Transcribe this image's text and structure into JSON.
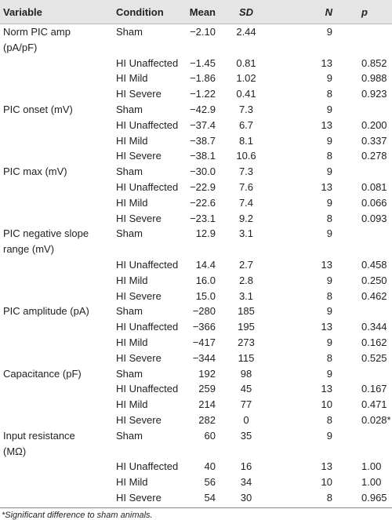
{
  "table": {
    "columns": [
      "Variable",
      "Condition",
      "Mean",
      "SD",
      "N",
      "p"
    ],
    "groups": [
      {
        "variable": [
          "Norm PIC amp",
          "(pA/pF)"
        ],
        "rows": [
          [
            "Sham",
            "−2.10",
            "2.44",
            "9"
          ],
          [
            "HI Unaffected",
            "−1.45",
            "0.81",
            "13",
            "0.852"
          ],
          [
            "HI Mild",
            "−1.86",
            "1.02",
            "9",
            "0.988"
          ],
          [
            "HI Severe",
            "−1.22",
            "0.41",
            "8",
            "0.923"
          ]
        ]
      },
      {
        "variable": [
          "PIC onset (mV)"
        ],
        "rows": [
          [
            "Sham",
            "−42.9",
            "7.3",
            "9"
          ],
          [
            "HI Unaffected",
            "−37.4",
            "6.7",
            "13",
            "0.200"
          ],
          [
            "HI Mild",
            "−38.7",
            "8.1",
            "9",
            "0.337"
          ],
          [
            "HI Severe",
            "−38.1",
            "10.6",
            "8",
            "0.278"
          ]
        ]
      },
      {
        "variable": [
          "PIC max (mV)"
        ],
        "rows": [
          [
            "Sham",
            "−30.0",
            "7.3",
            "9"
          ],
          [
            "HI Unaffected",
            "−22.9",
            "7.6",
            "13",
            "0.081"
          ],
          [
            "HI Mild",
            "−22.6",
            "7.4",
            "9",
            "0.066"
          ],
          [
            "HI Severe",
            "−23.1",
            "9.2",
            "8",
            "0.093"
          ]
        ]
      },
      {
        "variable": [
          "PIC negative slope",
          "range (mV)"
        ],
        "rows": [
          [
            "Sham",
            "12.9",
            "3.1",
            "9"
          ],
          [
            "HI Unaffected",
            "14.4",
            "2.7",
            "13",
            "0.458"
          ],
          [
            "HI Mild",
            "16.0",
            "2.8",
            "9",
            "0.250"
          ],
          [
            "HI Severe",
            "15.0",
            "3.1",
            "8",
            "0.462"
          ]
        ]
      },
      {
        "variable": [
          "PIC amplitude (pA)"
        ],
        "rows": [
          [
            "Sham",
            "−280",
            "185",
            "9"
          ],
          [
            "HI Unaffected",
            "−366",
            "195",
            "13",
            "0.344"
          ],
          [
            "HI Mild",
            "−417",
            "273",
            "9",
            "0.162"
          ],
          [
            "HI Severe",
            "−344",
            "115",
            "8",
            "0.525"
          ]
        ]
      },
      {
        "variable": [
          "Capacitance (pF)"
        ],
        "rows": [
          [
            "Sham",
            "192",
            "98",
            "9"
          ],
          [
            "HI Unaffected",
            "259",
            "45",
            "13",
            "0.167"
          ],
          [
            "HI Mild",
            "214",
            "77",
            "10",
            "0.471"
          ],
          [
            "HI Severe",
            "282",
            "0",
            "8",
            "0.028*"
          ]
        ]
      },
      {
        "variable": [
          "Input resistance",
          "(MΩ)"
        ],
        "rows": [
          [
            "Sham",
            "60",
            "35",
            "9"
          ],
          [
            "HI Unaffected",
            "40",
            "16",
            "13",
            "1.00"
          ],
          [
            "HI Mild",
            "56",
            "34",
            "10",
            "1.00"
          ],
          [
            "HI Severe",
            "54",
            "30",
            "8",
            "0.965"
          ]
        ]
      }
    ],
    "footnote": "*Significant difference to sham animals."
  }
}
